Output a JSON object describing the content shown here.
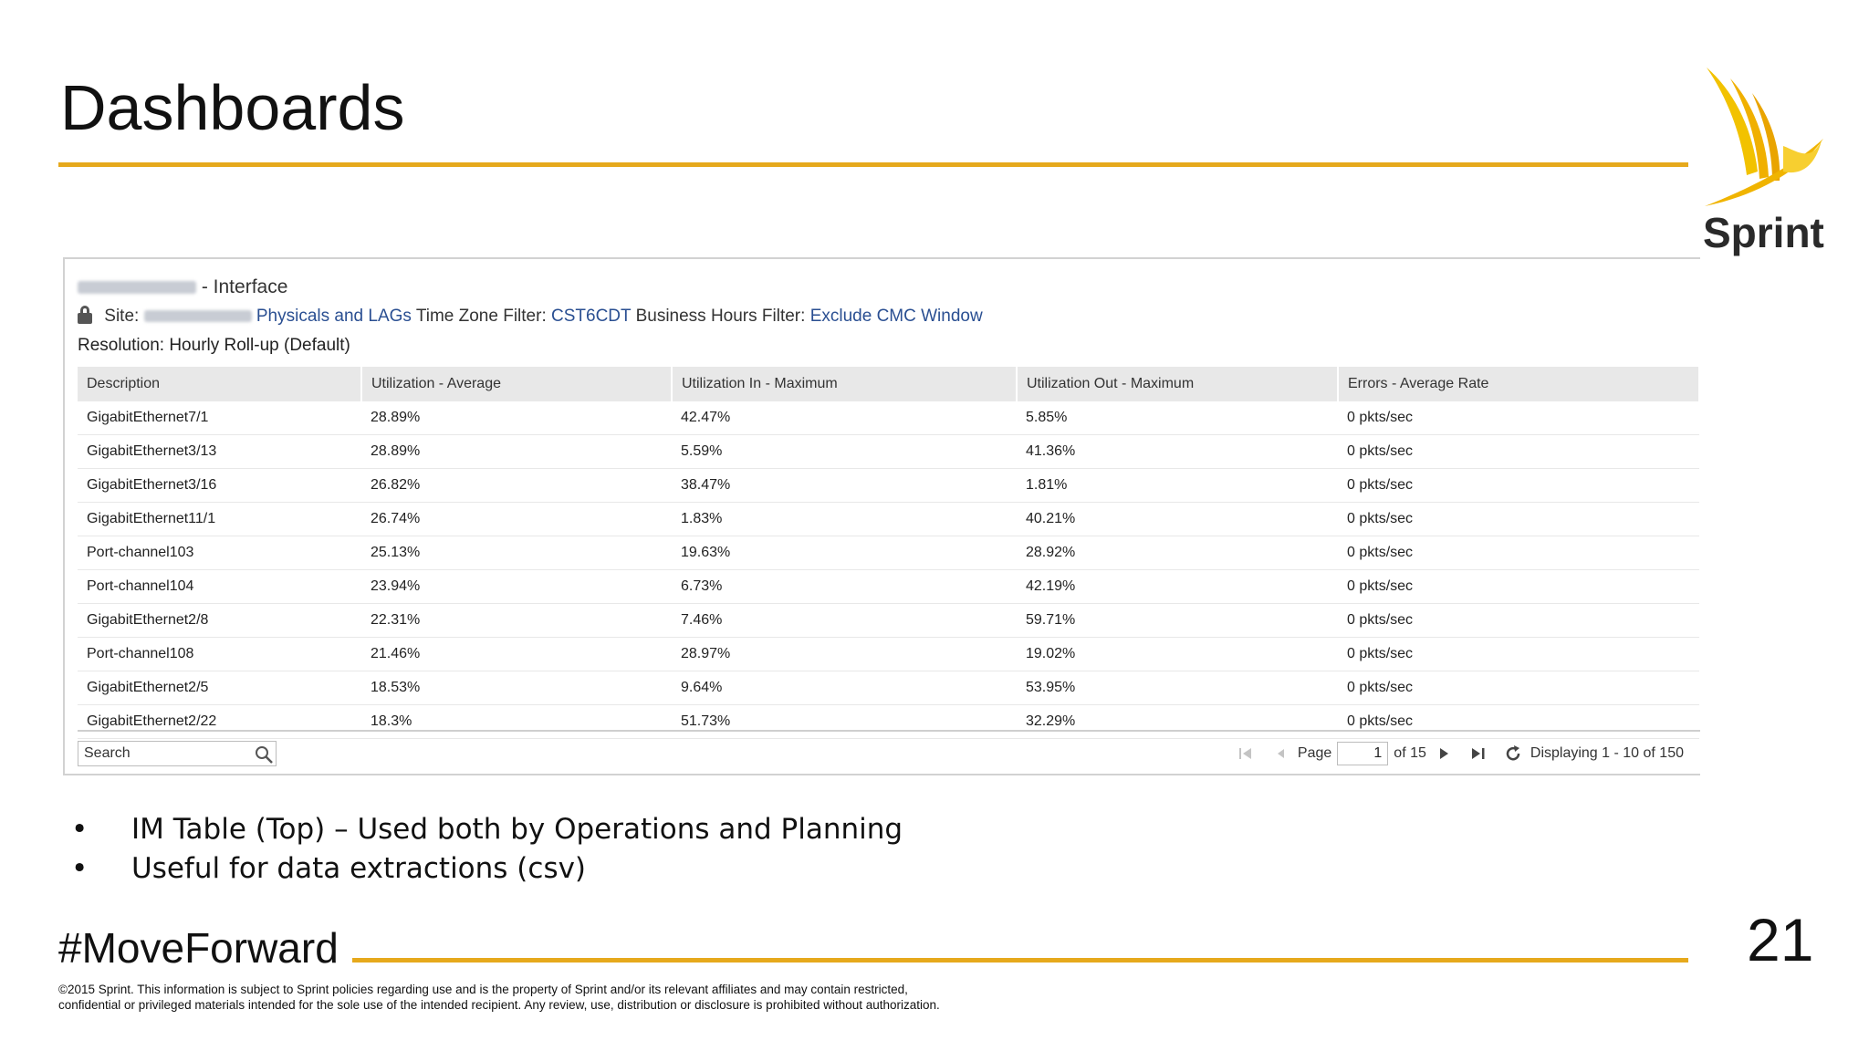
{
  "slide": {
    "title": "Dashboards",
    "hashtag": "#MoveForward",
    "page_number": "21",
    "logo_text": "Sprint",
    "accent_color": "#e6a91c",
    "legal_line1": "©2015 Sprint. This information is subject to Sprint policies regarding use and is the property of Sprint and/or its relevant affiliates and may contain restricted,",
    "legal_line2": "confidential or privileged materials intended for the sole use of the intended recipient. Any review, use, distribution or disclosure is prohibited without authorization.",
    "bullets": [
      "IM Table (Top) – Used both by Operations and Planning",
      "Useful for data extractions (csv)"
    ]
  },
  "panel": {
    "title_suffix": "- Interface",
    "site_label": "Site:",
    "site_link": "Physicals and LAGs",
    "tz_label": "Time Zone Filter:",
    "tz_value": "CST6CDT",
    "bh_label": "Business Hours Filter:",
    "bh_value": "Exclude CMC Window",
    "resolution": "Resolution: Hourly Roll-up (Default)",
    "columns": [
      "Description",
      "Utilization - Average",
      "Utilization In - Maximum",
      "Utilization Out - Maximum",
      "Errors - Average Rate"
    ],
    "rows": [
      [
        "GigabitEthernet7/1",
        "28.89%",
        "42.47%",
        "5.85%",
        "0 pkts/sec"
      ],
      [
        "GigabitEthernet3/13",
        "28.89%",
        "5.59%",
        "41.36%",
        "0 pkts/sec"
      ],
      [
        "GigabitEthernet3/16",
        "26.82%",
        "38.47%",
        "1.81%",
        "0 pkts/sec"
      ],
      [
        "GigabitEthernet11/1",
        "26.74%",
        "1.83%",
        "40.21%",
        "0 pkts/sec"
      ],
      [
        "Port-channel103",
        "25.13%",
        "19.63%",
        "28.92%",
        "0 pkts/sec"
      ],
      [
        "Port-channel104",
        "23.94%",
        "6.73%",
        "42.19%",
        "0 pkts/sec"
      ],
      [
        "GigabitEthernet2/8",
        "22.31%",
        "7.46%",
        "59.71%",
        "0 pkts/sec"
      ],
      [
        "Port-channel108",
        "21.46%",
        "28.97%",
        "19.02%",
        "0 pkts/sec"
      ],
      [
        "GigabitEthernet2/5",
        "18.53%",
        "9.64%",
        "53.95%",
        "0 pkts/sec"
      ],
      [
        "GigabitEthernet2/22",
        "18.3%",
        "51.73%",
        "32.29%",
        "0 pkts/sec"
      ]
    ],
    "search_placeholder": "Search",
    "pager": {
      "page_label": "Page",
      "page_value": "1",
      "of_label": "of 15",
      "display_text": "Displaying 1 - 10 of 150"
    }
  }
}
